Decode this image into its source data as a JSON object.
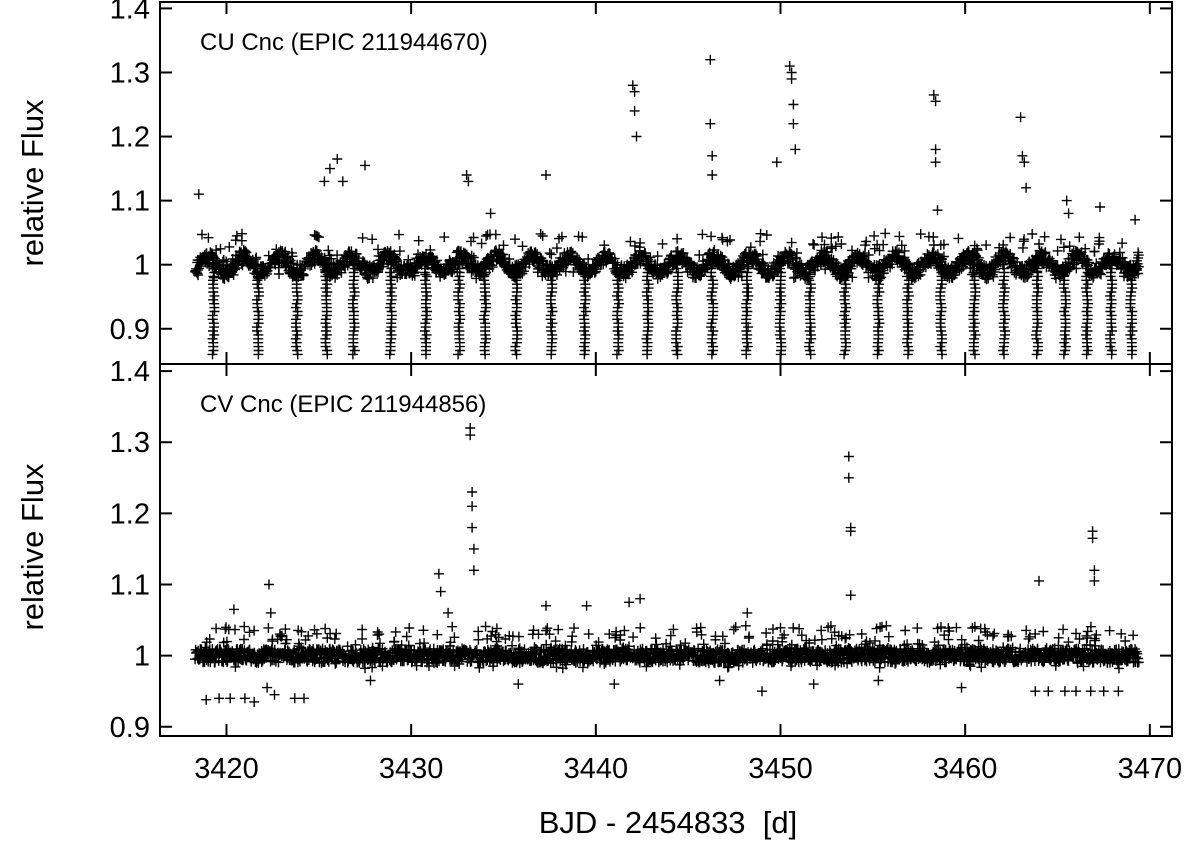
{
  "chart_data": [
    {
      "type": "scatter",
      "marker": "plus",
      "color": "#000000",
      "title": "CU Cnc (EPIC 211944670)",
      "ylabel": "relative Flux",
      "xlabel": "",
      "xlim": [
        3416.4,
        3471.2
      ],
      "ylim": [
        0.845,
        1.41
      ],
      "yticks": [
        0.9,
        1,
        1.1,
        1.2,
        1.3,
        1.4
      ],
      "ytick_labels": [
        "0.9",
        "1",
        "1.1",
        "1.2",
        "1.3",
        "1.4"
      ],
      "baseline": 1.0,
      "eclipse_depth_min": 0.86,
      "eclipse_times": [
        3419.3,
        3421.7,
        3423.8,
        3425.4,
        3426.9,
        3428.9,
        3430.8,
        3432.6,
        3434.0,
        3435.7,
        3437.6,
        3439.4,
        3441.2,
        3442.8,
        3444.4,
        3446.3,
        3448.2,
        3450.0,
        3451.6,
        3453.5,
        3455.3,
        3456.9,
        3458.7,
        3460.5,
        3462.1,
        3463.9,
        3465.4,
        3466.6,
        3467.9,
        3469.0
      ],
      "flare_points": [
        [
          3418.5,
          1.11
        ],
        [
          3425.3,
          1.13
        ],
        [
          3425.6,
          1.15
        ],
        [
          3426.0,
          1.165
        ],
        [
          3426.3,
          1.13
        ],
        [
          3427.5,
          1.155
        ],
        [
          3433.0,
          1.14
        ],
        [
          3433.1,
          1.13
        ],
        [
          3434.3,
          1.08
        ],
        [
          3437.3,
          1.14
        ],
        [
          3442.0,
          1.28
        ],
        [
          3442.1,
          1.27
        ],
        [
          3442.1,
          1.24
        ],
        [
          3442.2,
          1.2
        ],
        [
          3446.2,
          1.32
        ],
        [
          3446.2,
          1.22
        ],
        [
          3446.3,
          1.17
        ],
        [
          3446.3,
          1.14
        ],
        [
          3449.8,
          1.16
        ],
        [
          3450.5,
          1.31
        ],
        [
          3450.6,
          1.3
        ],
        [
          3450.6,
          1.29
        ],
        [
          3450.7,
          1.25
        ],
        [
          3450.7,
          1.22
        ],
        [
          3450.8,
          1.18
        ],
        [
          3458.3,
          1.265
        ],
        [
          3458.4,
          1.255
        ],
        [
          3458.4,
          1.18
        ],
        [
          3458.4,
          1.16
        ],
        [
          3458.5,
          1.085
        ],
        [
          3463.0,
          1.23
        ],
        [
          3463.1,
          1.17
        ],
        [
          3463.2,
          1.16
        ],
        [
          3463.3,
          1.12
        ],
        [
          3465.5,
          1.1
        ],
        [
          3465.6,
          1.08
        ],
        [
          3467.3,
          1.09
        ],
        [
          3469.2,
          1.07
        ]
      ]
    },
    {
      "type": "scatter",
      "marker": "plus",
      "color": "#000000",
      "title": "CV Cnc (EPIC 211944856)",
      "ylabel": "relative Flux",
      "xlabel": "BJD - 2454833  [d]",
      "xlim": [
        3416.4,
        3471.2
      ],
      "ylim": [
        0.887,
        1.41
      ],
      "xticks": [
        3420,
        3430,
        3440,
        3450,
        3460,
        3470
      ],
      "xtick_labels": [
        "3420",
        "3430",
        "3440",
        "3450",
        "3460",
        "3470"
      ],
      "yticks": [
        0.9,
        1,
        1.1,
        1.2,
        1.3,
        1.4
      ],
      "ytick_labels": [
        "0.9",
        "1",
        "1.1",
        "1.2",
        "1.3",
        "1.4"
      ],
      "baseline": 1.0,
      "flare_points": [
        [
          3420.4,
          1.065
        ],
        [
          3422.3,
          1.1
        ],
        [
          3422.4,
          1.06
        ],
        [
          3431.5,
          1.115
        ],
        [
          3431.6,
          1.09
        ],
        [
          3432.0,
          1.06
        ],
        [
          3433.2,
          1.32
        ],
        [
          3433.2,
          1.31
        ],
        [
          3433.3,
          1.23
        ],
        [
          3433.3,
          1.21
        ],
        [
          3433.3,
          1.18
        ],
        [
          3433.4,
          1.15
        ],
        [
          3433.4,
          1.12
        ],
        [
          3437.3,
          1.07
        ],
        [
          3439.5,
          1.07
        ],
        [
          3441.8,
          1.075
        ],
        [
          3442.4,
          1.08
        ],
        [
          3448.2,
          1.06
        ],
        [
          3453.7,
          1.28
        ],
        [
          3453.7,
          1.25
        ],
        [
          3453.8,
          1.18
        ],
        [
          3453.8,
          1.175
        ],
        [
          3453.8,
          1.085
        ],
        [
          3464.0,
          1.105
        ],
        [
          3466.9,
          1.175
        ],
        [
          3466.9,
          1.165
        ],
        [
          3467.0,
          1.12
        ],
        [
          3467.0,
          1.105
        ]
      ],
      "dip_points": [
        [
          3418.9,
          0.938
        ],
        [
          3419.6,
          0.94
        ],
        [
          3420.2,
          0.94
        ],
        [
          3421.0,
          0.94
        ],
        [
          3421.5,
          0.935
        ],
        [
          3422.2,
          0.955
        ],
        [
          3422.6,
          0.945
        ],
        [
          3423.7,
          0.94
        ],
        [
          3424.2,
          0.94
        ],
        [
          3427.8,
          0.965
        ],
        [
          3435.8,
          0.96
        ],
        [
          3441.0,
          0.96
        ],
        [
          3446.7,
          0.965
        ],
        [
          3449.0,
          0.95
        ],
        [
          3451.8,
          0.96
        ],
        [
          3455.3,
          0.965
        ],
        [
          3459.8,
          0.955
        ],
        [
          3463.8,
          0.95
        ],
        [
          3464.5,
          0.95
        ],
        [
          3465.4,
          0.95
        ],
        [
          3466.0,
          0.95
        ],
        [
          3466.8,
          0.95
        ],
        [
          3467.5,
          0.95
        ],
        [
          3468.3,
          0.95
        ]
      ]
    }
  ]
}
